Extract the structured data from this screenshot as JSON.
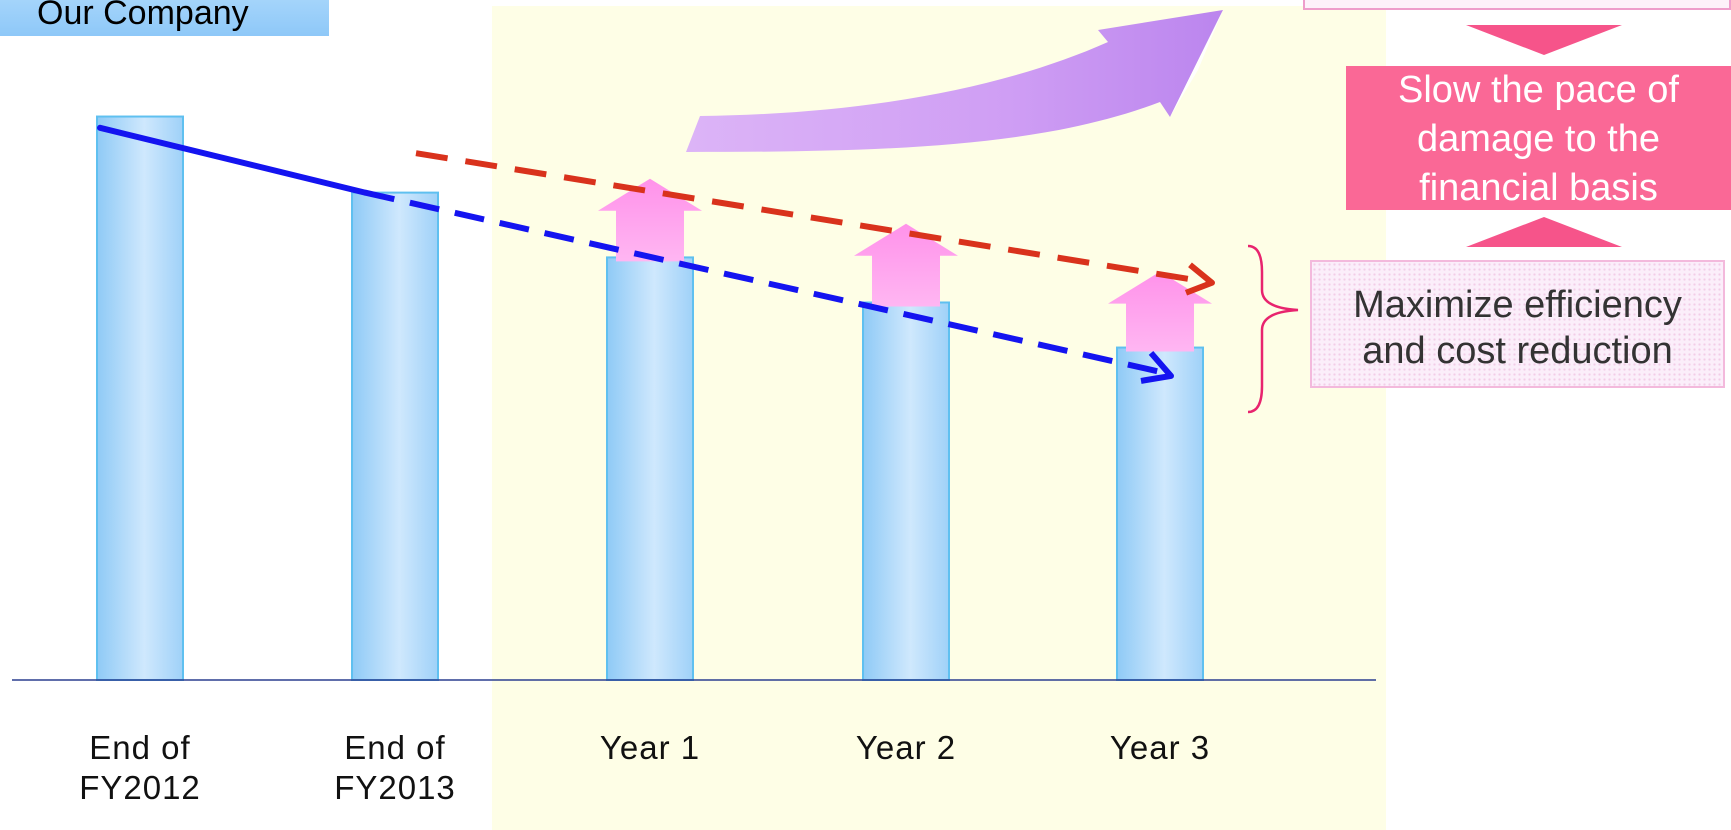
{
  "chart_data": {
    "type": "bar",
    "categories": [
      {
        "line1": "End of",
        "line2": "FY2012"
      },
      {
        "line1": "End of",
        "line2": "FY2013"
      },
      {
        "line1": "Year 1",
        "line2": ""
      },
      {
        "line1": "Year 2",
        "line2": ""
      },
      {
        "line1": "Year 3",
        "line2": ""
      }
    ],
    "values": [
      100,
      86.5,
      75,
      67,
      59
    ],
    "uplift_values": [
      null,
      null,
      84,
      76,
      67.5
    ],
    "trend_baseline": {
      "x": [
        0,
        1,
        4
      ],
      "y": [
        98,
        86.5,
        54.5
      ]
    },
    "trend_target": {
      "x": [
        1.1,
        4.2
      ],
      "y": [
        93.5,
        70.5
      ]
    },
    "ylim": [
      0,
      104
    ],
    "colors": {
      "bar": "#b8dcfb",
      "bar_edge": "#5fc0f0",
      "baseline_trend": "#1414f0",
      "target_trend": "#d9321c",
      "uplift_arrow": "#ff84e6",
      "growth_arrow": "#d7a8f5",
      "forecast_bg": "#fefee6",
      "brace": "#e8246e"
    }
  },
  "labels": {
    "company": "Our Company",
    "slow_lines": [
      "Slow the pace of",
      "damage to the",
      "financial basis"
    ],
    "max_lines": [
      "Maximize efficiency",
      "and cost reduction"
    ]
  }
}
